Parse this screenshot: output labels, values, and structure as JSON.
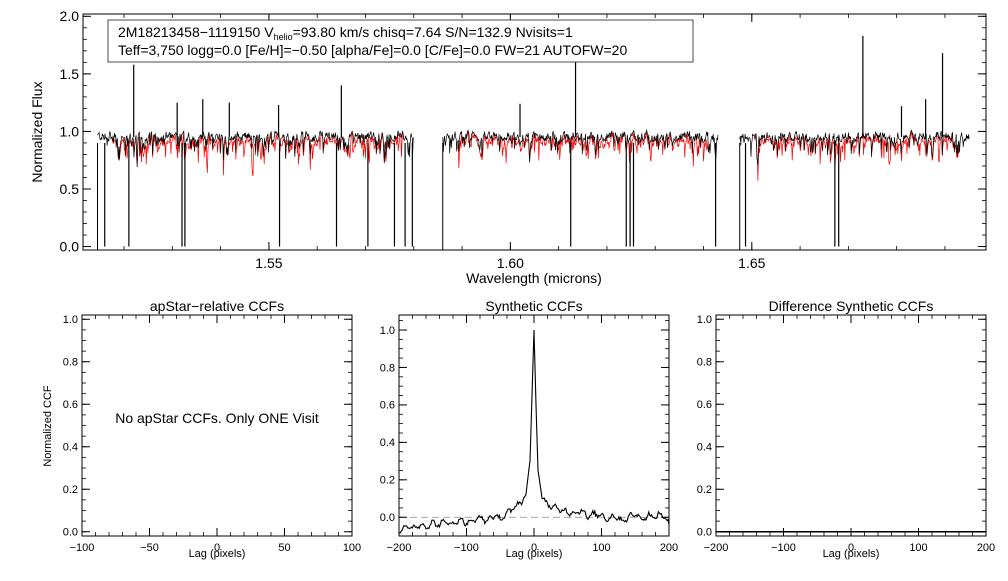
{
  "chart_data": [
    {
      "id": "spectrum",
      "type": "line",
      "title_line1_pre": "2M18213458−1119150  V",
      "title_line1_sub": "helio",
      "title_line1_post": "=93.80 km/s  chisq=7.64  S/N=132.9  Nvisits=1",
      "title_line2": "Teff=3,750 logg=0.0 [Fe/H]=−0.50 [alpha/Fe]=0.0 [C/Fe]=0.0 FW=21 AUTOFW=20",
      "xlabel": "Wavelength (microns)",
      "ylabel": "Normalized Flux",
      "xlim": [
        1.5115,
        1.6985
      ],
      "ylim": [
        -0.03,
        2.02
      ],
      "xticks": [
        1.55,
        1.6,
        1.65
      ],
      "xtick_labels": [
        "1.55",
        "1.60",
        "1.65"
      ],
      "yticks": [
        0.0,
        0.5,
        1.0,
        1.5,
        2.0
      ],
      "ytick_labels": [
        "0.0",
        "0.5",
        "1.0",
        "1.5",
        "2.0"
      ],
      "chips": [
        [
          1.5145,
          1.58
        ],
        [
          1.586,
          1.643
        ],
        [
          1.6475,
          1.695
        ]
      ],
      "series": [
        {
          "name": "Observed spectrum",
          "color": "#000000"
        },
        {
          "name": "Best-fit synthetic spectrum",
          "color": "#ff0000"
        }
      ],
      "emission_spikes": [
        [
          1.522,
          1.58
        ],
        [
          1.531,
          1.25
        ],
        [
          1.5363,
          1.28
        ],
        [
          1.5418,
          1.25
        ],
        [
          1.552,
          1.23
        ],
        [
          1.565,
          1.4
        ],
        [
          1.602,
          1.24
        ],
        [
          1.6135,
          1.6
        ],
        [
          1.673,
          1.83
        ],
        [
          1.681,
          1.22
        ],
        [
          1.686,
          1.28
        ],
        [
          1.6895,
          1.68
        ]
      ],
      "absorption_lines": [
        [
          1.516,
          0.0
        ],
        [
          1.521,
          0.0
        ],
        [
          1.532,
          0.0
        ],
        [
          1.5326,
          0.0
        ],
        [
          1.5522,
          0.0
        ],
        [
          1.564,
          0.0
        ],
        [
          1.5705,
          0.0
        ],
        [
          1.576,
          0.0
        ],
        [
          1.5782,
          0.0
        ],
        [
          1.5797,
          0.0
        ],
        [
          1.6125,
          0.0
        ],
        [
          1.624,
          0.0
        ],
        [
          1.6248,
          0.0
        ],
        [
          1.6255,
          0.0
        ],
        [
          1.6425,
          0.0
        ],
        [
          1.6487,
          0.0
        ],
        [
          1.6672,
          0.0
        ],
        [
          1.668,
          0.0
        ]
      ]
    },
    {
      "id": "apstar-ccf",
      "type": "line",
      "title": "apStar−relative CCFs",
      "xlabel": "Lag (pixels)",
      "ylabel": "Normalized CCF",
      "xlim": [
        -100,
        100
      ],
      "ylim": [
        -0.02,
        1.02
      ],
      "xticks": [
        -100,
        -50,
        0,
        50,
        100
      ],
      "xtick_labels": [
        "−100",
        "−50",
        "0",
        "50",
        "100"
      ],
      "yticks": [
        0.0,
        0.2,
        0.4,
        0.6,
        0.8,
        1.0
      ],
      "ytick_labels": [
        "0.0",
        "0.2",
        "0.4",
        "0.6",
        "0.8",
        "1.0"
      ],
      "annotation": "No apStar CCFs.  Only ONE Visit",
      "series": []
    },
    {
      "id": "synthetic-ccf",
      "type": "line",
      "title": "Synthetic CCFs",
      "xlabel": "Lag (pixels)",
      "ylabel": "",
      "xlim": [
        -200,
        200
      ],
      "ylim": [
        -0.1,
        1.08
      ],
      "xticks": [
        -200,
        -100,
        0,
        100,
        200
      ],
      "xtick_labels": [
        "−200",
        "−100",
        "0",
        "100",
        "200"
      ],
      "yticks": [
        0.0,
        0.2,
        0.4,
        0.6,
        0.8,
        1.0
      ],
      "ytick_labels": [
        "0.0",
        "0.2",
        "0.4",
        "0.6",
        "0.8",
        "1.0"
      ],
      "reference_line_y": 0.0,
      "series": [
        {
          "name": "CCF",
          "x": [
            -200,
            -190,
            -180,
            -170,
            -160,
            -150,
            -140,
            -130,
            -120,
            -110,
            -100,
            -90,
            -80,
            -70,
            -60,
            -50,
            -40,
            -30,
            -20,
            -12,
            -6,
            -3,
            0,
            3,
            6,
            12,
            20,
            30,
            40,
            50,
            60,
            70,
            80,
            90,
            100,
            110,
            120,
            130,
            140,
            150,
            160,
            170,
            180,
            190,
            200
          ],
          "y": [
            -0.07,
            -0.05,
            -0.06,
            -0.04,
            -0.05,
            -0.03,
            -0.04,
            -0.02,
            -0.04,
            -0.01,
            -0.03,
            -0.02,
            0.0,
            -0.02,
            0.01,
            -0.01,
            0.02,
            0.05,
            0.08,
            0.12,
            0.3,
            0.65,
            1.0,
            0.6,
            0.25,
            0.1,
            0.07,
            0.05,
            0.04,
            0.03,
            0.02,
            0.04,
            0.0,
            0.02,
            0.01,
            -0.01,
            0.01,
            -0.02,
            0.0,
            0.02,
            -0.01,
            0.01,
            0.0,
            0.02,
            -0.04
          ]
        }
      ]
    },
    {
      "id": "difference-ccf",
      "type": "line",
      "title": "Difference Synthetic CCFs",
      "xlabel": "Lag (pixels)",
      "ylabel": "",
      "xlim": [
        -200,
        200
      ],
      "ylim": [
        -0.02,
        1.02
      ],
      "xticks": [
        -200,
        -100,
        0,
        100,
        200
      ],
      "xtick_labels": [
        "−200",
        "−100",
        "0",
        "100",
        "200"
      ],
      "yticks": [
        0.0,
        0.2,
        0.4,
        0.6,
        0.8,
        1.0
      ],
      "ytick_labels": [
        "0.0",
        "0.2",
        "0.4",
        "0.6",
        "0.8",
        "1.0"
      ],
      "series": [
        {
          "name": "Difference CCF",
          "x": [
            -200,
            200
          ],
          "y": [
            0.0,
            0.0
          ]
        }
      ]
    }
  ]
}
